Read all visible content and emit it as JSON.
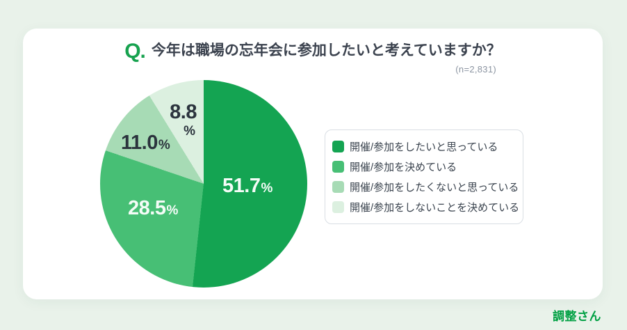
{
  "page": {
    "background_color": "#e9f2ea",
    "brand": {
      "label": "調整さん",
      "color": "#00a043"
    }
  },
  "question": {
    "prefix": "Q.",
    "prefix_color": "#17a24f",
    "title": "今年は職場の忘年会に参加したいと考えていますか？",
    "sample_size": "(n=2,831)"
  },
  "chart_data": {
    "type": "pie",
    "title": "今年は職場の忘年会に参加したいと考えていますか？",
    "sample_size": "(n=2,831)",
    "direction": "clockwise",
    "start_angle_deg": 0,
    "legend_position": "right",
    "slices": [
      {
        "label": "開催/参加をしたいと思っている",
        "value": "51.7",
        "unit": "%",
        "numeric": 51.7,
        "color": "#14a452",
        "text_color": "#f4fcf7"
      },
      {
        "label": "開催/参加を決めている",
        "value": "28.5",
        "unit": "%",
        "numeric": 28.5,
        "color": "#47bf75",
        "text_color": "#f4fcf7"
      },
      {
        "label": "開催/参加をしたくないと思っている",
        "value": "11.0",
        "unit": "%",
        "numeric": 11.0,
        "color": "#a7dbb5",
        "text_color": "#2b333d"
      },
      {
        "label": "開催/参加をしないことを決めている",
        "value": "8.8",
        "unit": "%",
        "numeric": 8.8,
        "color": "#dcf0e0",
        "text_color": "#2b333d"
      }
    ]
  }
}
